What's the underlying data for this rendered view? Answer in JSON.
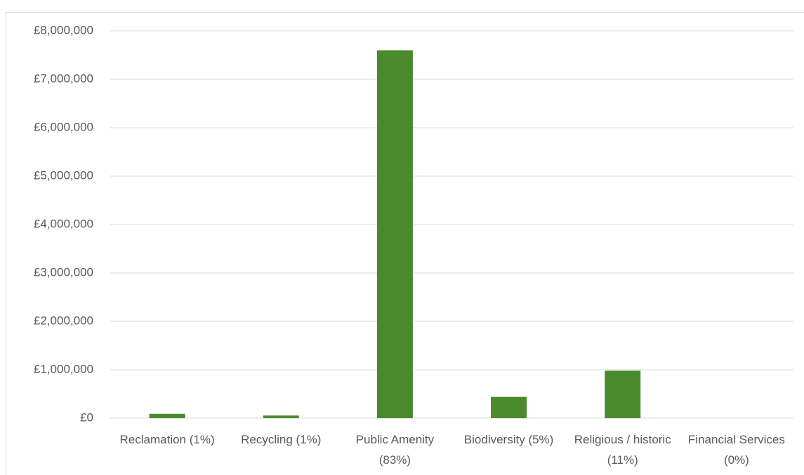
{
  "chart_data": {
    "type": "bar",
    "categories": [
      "Reclamation (1%)",
      "Recycling (1%)",
      "Public Amenity (83%)",
      "Biodiversity (5%)",
      "Religious / historic (11%)",
      "Financial Services (0%)"
    ],
    "values": [
      90000,
      55000,
      7600000,
      440000,
      980000,
      0
    ],
    "color": "#4a8a2c",
    "ylim": [
      0,
      8000000
    ],
    "yticks": [
      {
        "value": 0,
        "label": "£0"
      },
      {
        "value": 1000000,
        "label": "£1,000,000"
      },
      {
        "value": 2000000,
        "label": "£2,000,000"
      },
      {
        "value": 3000000,
        "label": "£3,000,000"
      },
      {
        "value": 4000000,
        "label": "£4,000,000"
      },
      {
        "value": 5000000,
        "label": "£5,000,000"
      },
      {
        "value": 6000000,
        "label": "£6,000,000"
      },
      {
        "value": 7000000,
        "label": "£7,000,000"
      },
      {
        "value": 8000000,
        "label": "£8,000,000"
      }
    ],
    "grid": true
  }
}
